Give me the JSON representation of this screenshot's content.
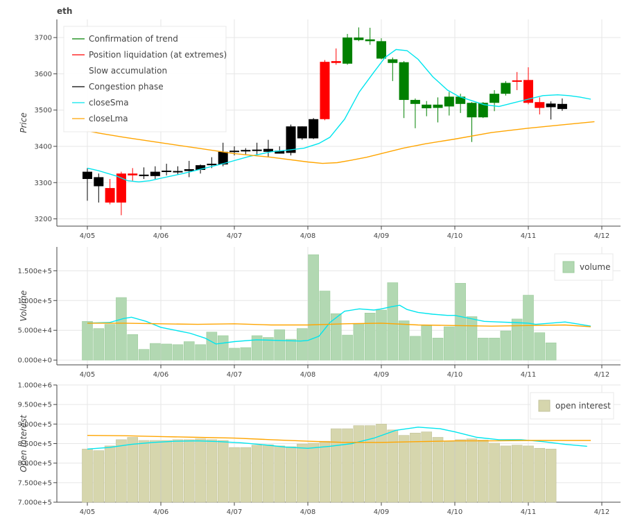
{
  "title": "eth",
  "x_ticks": [
    "4/05",
    "4/06",
    "4/07",
    "4/08",
    "4/09",
    "4/10",
    "4/11",
    "4/12"
  ],
  "colors": {
    "trend": "#008000",
    "liquidation": "#ff0000",
    "accumulation": "#ffffff",
    "congestion": "#000000",
    "closeSma": "#00e5ee",
    "closeLma": "#ffa500",
    "volume_fill": "#b2d8b2",
    "volume_edge": "#9ccc9c",
    "oi_fill": "#d6d6ad",
    "oi_edge": "#c2c29a",
    "grid": "#e6e6e6",
    "axis": "#444444"
  },
  "legend_price": [
    {
      "label": "Confirmation of trend",
      "color": "#008000"
    },
    {
      "label": "Position liquidation (at extremes)",
      "color": "#ff0000"
    },
    {
      "label": "Slow accumulation",
      "color": "#ffffff"
    },
    {
      "label": "Congestion phase",
      "color": "#000000"
    },
    {
      "label": "closeSma",
      "color": "#00e5ee"
    },
    {
      "label": "closeLma",
      "color": "#ffa500"
    }
  ],
  "legend_volume": "volume",
  "legend_oi": "open interest",
  "chart_data": [
    {
      "type": "candlestick",
      "ylabel": "Price",
      "ylim": [
        3180,
        3750
      ],
      "y_ticks": [
        "3200",
        "3300",
        "3400",
        "3500",
        "3600",
        "3700"
      ],
      "y_tick_values": [
        3200,
        3300,
        3400,
        3500,
        3600,
        3700
      ],
      "legend_position": "top-left",
      "x_positions": [
        0,
        0.1538,
        0.3077,
        0.4615,
        0.6154,
        0.7692,
        0.9231,
        1.0769,
        1.2308,
        1.3846,
        1.5385,
        1.6923,
        1.8462,
        2.0,
        2.1538,
        2.3077,
        2.4615,
        2.6154,
        2.7692,
        2.9231,
        3.0769,
        3.2308,
        3.3846,
        3.5385,
        3.6923,
        3.8462,
        4.0,
        4.1538,
        4.3077,
        4.4615,
        4.6154,
        4.7692,
        4.9231,
        5.0769,
        5.2308,
        5.3846,
        5.5385,
        5.6923,
        5.8462,
        6.0,
        6.1538,
        6.3077,
        6.4615,
        6.6154,
        6.7692
      ],
      "candles": [
        {
          "o": 3330,
          "h": 3340,
          "l": 3250,
          "c": 3310,
          "phase": "congestion"
        },
        {
          "o": 3315,
          "h": 3325,
          "l": 3245,
          "c": 3290,
          "phase": "congestion"
        },
        {
          "o": 3285,
          "h": 3310,
          "l": 3240,
          "c": 3245,
          "phase": "liquidation"
        },
        {
          "o": 3245,
          "h": 3330,
          "l": 3210,
          "c": 3325,
          "phase": "liquidation"
        },
        {
          "o": 3325,
          "h": 3340,
          "l": 3305,
          "c": 3320,
          "phase": "liquidation"
        },
        {
          "o": 3318,
          "h": 3342,
          "l": 3310,
          "c": 3322,
          "phase": "congestion"
        },
        {
          "o": 3318,
          "h": 3345,
          "l": 3310,
          "c": 3330,
          "phase": "congestion"
        },
        {
          "o": 3330,
          "h": 3352,
          "l": 3320,
          "c": 3333,
          "phase": "congestion"
        },
        {
          "o": 3330,
          "h": 3345,
          "l": 3322,
          "c": 3332,
          "phase": "congestion"
        },
        {
          "o": 3332,
          "h": 3360,
          "l": 3315,
          "c": 3337,
          "phase": "congestion"
        },
        {
          "o": 3335,
          "h": 3350,
          "l": 3325,
          "c": 3348,
          "phase": "congestion"
        },
        {
          "o": 3348,
          "h": 3370,
          "l": 3340,
          "c": 3352,
          "phase": "congestion"
        },
        {
          "o": 3350,
          "h": 3410,
          "l": 3345,
          "c": 3385,
          "phase": "congestion"
        },
        {
          "o": 3385,
          "h": 3400,
          "l": 3375,
          "c": 3388,
          "phase": "congestion"
        },
        {
          "o": 3386,
          "h": 3395,
          "l": 3378,
          "c": 3390,
          "phase": "congestion"
        },
        {
          "o": 3388,
          "h": 3410,
          "l": 3378,
          "c": 3391,
          "phase": "congestion"
        },
        {
          "o": 3385,
          "h": 3418,
          "l": 3370,
          "c": 3393,
          "phase": "congestion"
        },
        {
          "o": 3388,
          "h": 3400,
          "l": 3380,
          "c": 3380,
          "phase": "congestion"
        },
        {
          "o": 3382,
          "h": 3460,
          "l": 3375,
          "c": 3455,
          "phase": "congestion"
        },
        {
          "o": 3422,
          "h": 3455,
          "l": 3418,
          "c": 3455,
          "phase": "congestion"
        },
        {
          "o": 3422,
          "h": 3478,
          "l": 3420,
          "c": 3475,
          "phase": "congestion"
        },
        {
          "o": 3633,
          "h": 3638,
          "l": 3472,
          "c": 3475,
          "phase": "liquidation"
        },
        {
          "o": 3635,
          "h": 3670,
          "l": 3625,
          "c": 3630,
          "phase": "liquidation"
        },
        {
          "o": 3628,
          "h": 3710,
          "l": 3625,
          "c": 3700,
          "phase": "trend"
        },
        {
          "o": 3700,
          "h": 3728,
          "l": 3690,
          "c": 3693,
          "phase": "trend"
        },
        {
          "o": 3695,
          "h": 3727,
          "l": 3680,
          "c": 3690,
          "phase": "trend"
        },
        {
          "o": 3690,
          "h": 3698,
          "l": 3640,
          "c": 3642,
          "phase": "trend"
        },
        {
          "o": 3640,
          "h": 3645,
          "l": 3580,
          "c": 3630,
          "phase": "trend"
        },
        {
          "o": 3632,
          "h": 3635,
          "l": 3478,
          "c": 3528,
          "phase": "trend"
        },
        {
          "o": 3528,
          "h": 3532,
          "l": 3450,
          "c": 3517,
          "phase": "trend"
        },
        {
          "o": 3515,
          "h": 3525,
          "l": 3483,
          "c": 3505,
          "phase": "trend"
        },
        {
          "o": 3515,
          "h": 3535,
          "l": 3466,
          "c": 3506,
          "phase": "trend"
        },
        {
          "o": 3510,
          "h": 3550,
          "l": 3485,
          "c": 3537,
          "phase": "trend"
        },
        {
          "o": 3537,
          "h": 3545,
          "l": 3492,
          "c": 3517,
          "phase": "trend"
        },
        {
          "o": 3520,
          "h": 3522,
          "l": 3412,
          "c": 3480,
          "phase": "trend"
        },
        {
          "o": 3480,
          "h": 3522,
          "l": 3478,
          "c": 3520,
          "phase": "trend"
        },
        {
          "o": 3520,
          "h": 3555,
          "l": 3497,
          "c": 3545,
          "phase": "trend"
        },
        {
          "o": 3545,
          "h": 3580,
          "l": 3540,
          "c": 3575,
          "phase": "trend"
        },
        {
          "o": 3578,
          "h": 3605,
          "l": 3555,
          "c": 3582,
          "phase": "liquidation"
        },
        {
          "o": 3583,
          "h": 3618,
          "l": 3516,
          "c": 3520,
          "phase": "liquidation"
        },
        {
          "o": 3522,
          "h": 3535,
          "l": 3488,
          "c": 3506,
          "phase": "liquidation"
        },
        {
          "o": 3518,
          "h": 3524,
          "l": 3474,
          "c": 3508,
          "phase": "congestion"
        },
        {
          "o": 3517,
          "h": 3532,
          "l": 3498,
          "c": 3503,
          "phase": "congestion"
        }
      ],
      "series": [
        {
          "name": "closeSma",
          "x": [
            0,
            0.15,
            0.4,
            0.55,
            0.7,
            0.85,
            1.0,
            1.3,
            1.6,
            1.9,
            2.2,
            2.5,
            2.75,
            2.95,
            3.15,
            3.3,
            3.5,
            3.7,
            3.9,
            4.05,
            4.2,
            4.35,
            4.5,
            4.7,
            4.9,
            5.05,
            5.2,
            5.4,
            5.6,
            5.8,
            6.0,
            6.2,
            6.4,
            6.55,
            6.7,
            6.85
          ],
          "values": [
            3340,
            3333,
            3318,
            3305,
            3302,
            3305,
            3312,
            3325,
            3340,
            3355,
            3372,
            3385,
            3390,
            3395,
            3408,
            3425,
            3475,
            3550,
            3605,
            3645,
            3667,
            3664,
            3640,
            3592,
            3555,
            3538,
            3528,
            3515,
            3510,
            3520,
            3530,
            3540,
            3542,
            3540,
            3536,
            3530
          ]
        },
        {
          "name": "closeLma",
          "x": [
            0,
            0.2,
            0.5,
            1.0,
            1.5,
            2.0,
            2.5,
            3.0,
            3.2,
            3.4,
            3.6,
            3.8,
            4.0,
            4.3,
            4.6,
            5.0,
            5.5,
            6.0,
            6.5,
            6.9
          ],
          "values": [
            3442,
            3435,
            3425,
            3410,
            3395,
            3380,
            3370,
            3357,
            3353,
            3355,
            3362,
            3370,
            3380,
            3395,
            3407,
            3420,
            3438,
            3450,
            3460,
            3468
          ]
        }
      ]
    },
    {
      "type": "bar",
      "ylabel": "Volume",
      "ylim": [
        -8000,
        190000
      ],
      "y_ticks": [
        "0.000e+0",
        "5.000e+4",
        "1.000e+5",
        "1.500e+5"
      ],
      "y_tick_values": [
        0,
        50000,
        100000,
        150000
      ],
      "legend_position": "top-right",
      "values": [
        65000,
        53000,
        60000,
        105000,
        43000,
        18000,
        28000,
        27000,
        26000,
        31000,
        26000,
        47000,
        41000,
        20000,
        21000,
        41000,
        38000,
        51000,
        35000,
        53000,
        177000,
        116000,
        78000,
        42000,
        61000,
        79000,
        84000,
        130000,
        66000,
        40000,
        58000,
        37000,
        56000,
        129000,
        73000,
        37000,
        37000,
        49000,
        69000,
        109000,
        46000,
        29000
      ],
      "series": [
        {
          "name": "closeSma",
          "x": [
            0,
            0.3,
            0.5,
            0.6,
            0.8,
            1.0,
            1.2,
            1.4,
            1.6,
            1.75,
            2.0,
            2.3,
            2.6,
            2.9,
            3.0,
            3.15,
            3.3,
            3.5,
            3.7,
            3.9,
            4.0,
            4.15,
            4.25,
            4.35,
            4.5,
            4.7,
            4.9,
            5.0,
            5.2,
            5.4,
            5.6,
            5.8,
            6.0,
            6.1,
            6.3,
            6.5,
            6.7,
            6.85
          ],
          "values": [
            62000,
            63000,
            70000,
            72000,
            65000,
            55000,
            50000,
            45000,
            37000,
            27000,
            31000,
            34000,
            33000,
            32000,
            33000,
            40000,
            63000,
            82000,
            86000,
            84000,
            86000,
            90000,
            92000,
            85000,
            80000,
            77000,
            75000,
            75000,
            70000,
            65000,
            64000,
            63000,
            62000,
            60000,
            62000,
            64000,
            60000,
            57000
          ]
        },
        {
          "name": "closeLma",
          "x": [
            0,
            0.5,
            1.0,
            1.5,
            2.0,
            2.5,
            3.0,
            3.5,
            4.0,
            4.5,
            5.0,
            5.5,
            6.0,
            6.5,
            6.85
          ],
          "values": [
            62000,
            62000,
            61000,
            60000,
            61000,
            59000,
            59000,
            61000,
            62000,
            59000,
            58000,
            57000,
            58000,
            59000,
            56000
          ]
        }
      ]
    },
    {
      "type": "bar",
      "ylabel": "Open Interest",
      "ylim": [
        700000,
        1000000
      ],
      "y_ticks": [
        "7.000e+5",
        "7.500e+5",
        "8.000e+5",
        "8.500e+5",
        "9.000e+5",
        "9.500e+5",
        "1.000e+6"
      ],
      "y_tick_values": [
        700000,
        750000,
        800000,
        850000,
        900000,
        950000,
        1000000
      ],
      "legend_position": "top-right",
      "values": [
        836000,
        832000,
        844000,
        860000,
        866000,
        858000,
        858000,
        858000,
        860000,
        860000,
        862000,
        860000,
        858000,
        840000,
        840000,
        846000,
        847000,
        844000,
        842000,
        849000,
        851000,
        856000,
        888000,
        888000,
        896000,
        896000,
        900000,
        885000,
        871000,
        877000,
        880000,
        866000,
        856000,
        860000,
        862000,
        859000,
        851000,
        844000,
        846000,
        844000,
        838000,
        836000
      ],
      "series": [
        {
          "name": "closeSma",
          "x": [
            0,
            0.3,
            0.6,
            0.9,
            1.2,
            1.5,
            1.8,
            2.1,
            2.4,
            2.7,
            3.0,
            3.3,
            3.6,
            3.9,
            4.2,
            4.5,
            4.8,
            5.0,
            5.3,
            5.6,
            5.9,
            6.2,
            6.5,
            6.8
          ],
          "values": [
            836000,
            840000,
            848000,
            853000,
            856000,
            857000,
            855000,
            852000,
            847000,
            841000,
            838000,
            843000,
            850000,
            864000,
            884000,
            892000,
            888000,
            880000,
            866000,
            860000,
            860000,
            855000,
            848000,
            843000
          ]
        },
        {
          "name": "closeLma",
          "x": [
            0,
            0.5,
            1.0,
            1.5,
            2.0,
            2.5,
            3.0,
            3.5,
            4.0,
            4.5,
            5.0,
            5.5,
            6.0,
            6.5,
            6.85
          ],
          "values": [
            871000,
            870000,
            868000,
            866000,
            864000,
            860000,
            856000,
            853000,
            853000,
            855000,
            857000,
            857000,
            858000,
            858000,
            858000
          ]
        }
      ]
    }
  ]
}
